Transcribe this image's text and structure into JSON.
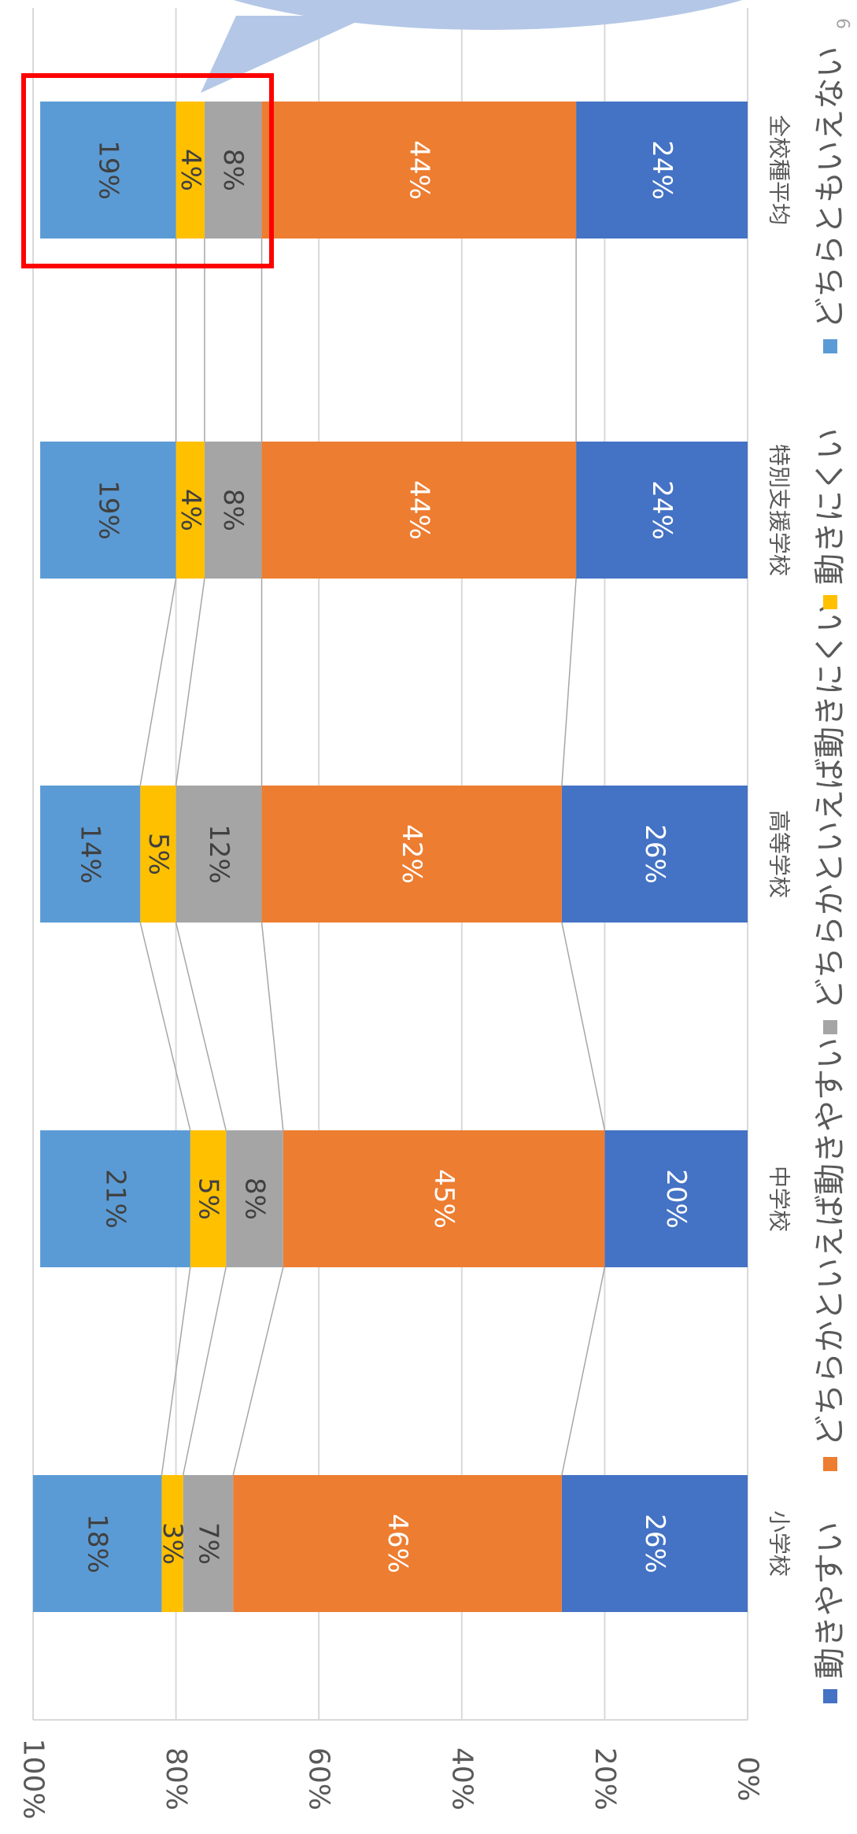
{
  "page": {
    "number": "6"
  },
  "chart_data": {
    "type": "bar",
    "orientation": "stacked-percent",
    "rotated": "90deg-clockwise",
    "categories": [
      "小学校",
      "中学校",
      "高等学校",
      "特別支援学校",
      "全校種平均"
    ],
    "series": [
      {
        "name": "動きやすい",
        "color": "#4472C4",
        "label_color": "#ffffff",
        "values": [
          26,
          20,
          26,
          24,
          24
        ]
      },
      {
        "name": "どちらかといえば動きやすい",
        "color": "#ED7D31",
        "label_color": "#ffffff",
        "values": [
          46,
          45,
          42,
          44,
          44
        ]
      },
      {
        "name": "どちらかといえば動きにくい",
        "color": "#A5A5A5",
        "label_color": "#404040",
        "values": [
          7,
          8,
          12,
          8,
          8
        ]
      },
      {
        "name": "動きにくい",
        "color": "#FFC000",
        "label_color": "#404040",
        "values": [
          3,
          5,
          5,
          4,
          4
        ]
      },
      {
        "name": "どちらともいえない",
        "color": "#5B9BD5",
        "label_color": "#404040",
        "values": [
          18,
          21,
          14,
          19,
          19
        ]
      }
    ],
    "ylim": [
      0,
      100
    ],
    "yticks": [
      "0%",
      "20%",
      "40%",
      "60%",
      "80%",
      "100%"
    ],
    "grid": true,
    "series_lines": true,
    "legend_position": "bottom",
    "highlight": {
      "category": "全校種平均",
      "color": "#FF0000"
    },
    "callout": {
      "color": "#B4C7E7"
    }
  }
}
